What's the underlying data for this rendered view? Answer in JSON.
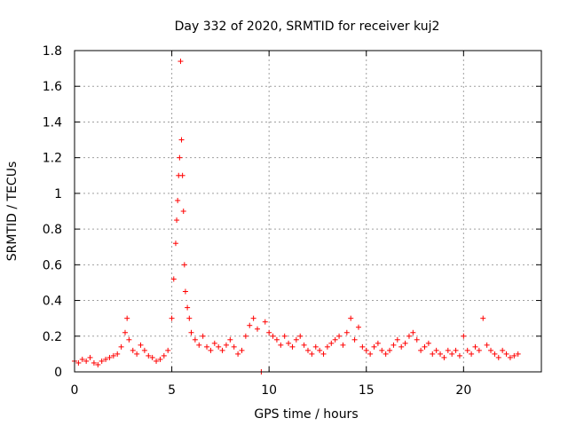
{
  "chart_data": {
    "type": "scatter",
    "title": "Day 332 of 2020, SRMTID for receiver kuj2",
    "xlabel": "GPS time / hours",
    "ylabel": "SRMTID / TECUs",
    "xlim": [
      0,
      24
    ],
    "ylim": [
      0,
      1.8
    ],
    "xticks": [
      0,
      5,
      10,
      15,
      20
    ],
    "xtick_labels": [
      "0",
      "5",
      "10",
      "15",
      "20"
    ],
    "yticks": [
      0,
      0.2,
      0.4,
      0.6,
      0.8,
      1.0,
      1.2,
      1.4,
      1.6,
      1.8
    ],
    "ytick_labels": [
      "0",
      "0.2",
      "0.4",
      "0.6",
      "0.8",
      "1",
      "1.2",
      "1.4",
      "1.6",
      "1.8"
    ],
    "grid": true,
    "marker": "+",
    "color": "#ff0000",
    "series": [
      {
        "name": "kuj2",
        "x": [
          0.0,
          0.2,
          0.4,
          0.6,
          0.8,
          1.0,
          1.2,
          1.4,
          1.6,
          1.8,
          2.0,
          2.2,
          2.4,
          2.6,
          2.7,
          2.8,
          3.0,
          3.2,
          3.4,
          3.6,
          3.8,
          4.0,
          4.2,
          4.4,
          4.6,
          4.8,
          5.0,
          5.1,
          5.2,
          5.25,
          5.3,
          5.35,
          5.4,
          5.45,
          5.5,
          5.55,
          5.6,
          5.65,
          5.7,
          5.8,
          5.9,
          6.0,
          6.2,
          6.4,
          6.6,
          6.8,
          7.0,
          7.2,
          7.4,
          7.6,
          7.8,
          8.0,
          8.2,
          8.4,
          8.6,
          8.8,
          9.0,
          9.2,
          9.4,
          9.6,
          9.8,
          10.0,
          10.2,
          10.4,
          10.6,
          10.8,
          11.0,
          11.2,
          11.4,
          11.6,
          11.8,
          12.0,
          12.2,
          12.4,
          12.6,
          12.8,
          13.0,
          13.2,
          13.4,
          13.6,
          13.8,
          14.0,
          14.2,
          14.4,
          14.6,
          14.8,
          15.0,
          15.2,
          15.4,
          15.6,
          15.8,
          16.0,
          16.2,
          16.4,
          16.6,
          16.8,
          17.0,
          17.2,
          17.4,
          17.6,
          17.8,
          18.0,
          18.2,
          18.4,
          18.6,
          18.8,
          19.0,
          19.2,
          19.4,
          19.6,
          19.8,
          20.0,
          20.2,
          20.4,
          20.6,
          20.8,
          21.0,
          21.2,
          21.4,
          21.6,
          21.8,
          22.0,
          22.2,
          22.4,
          22.6,
          22.8
        ],
        "y": [
          0.06,
          0.05,
          0.07,
          0.06,
          0.08,
          0.05,
          0.04,
          0.06,
          0.07,
          0.08,
          0.09,
          0.1,
          0.14,
          0.22,
          0.3,
          0.18,
          0.12,
          0.1,
          0.15,
          0.12,
          0.09,
          0.08,
          0.06,
          0.07,
          0.09,
          0.12,
          0.3,
          0.52,
          0.72,
          0.85,
          0.96,
          1.1,
          1.2,
          1.74,
          1.3,
          1.1,
          0.9,
          0.6,
          0.45,
          0.36,
          0.3,
          0.22,
          0.18,
          0.15,
          0.2,
          0.14,
          0.12,
          0.16,
          0.14,
          0.12,
          0.15,
          0.18,
          0.14,
          0.1,
          0.12,
          0.2,
          0.26,
          0.3,
          0.24,
          0.0,
          0.28,
          0.22,
          0.2,
          0.18,
          0.15,
          0.2,
          0.16,
          0.14,
          0.18,
          0.2,
          0.15,
          0.12,
          0.1,
          0.14,
          0.12,
          0.1,
          0.14,
          0.16,
          0.18,
          0.2,
          0.15,
          0.22,
          0.3,
          0.18,
          0.25,
          0.14,
          0.12,
          0.1,
          0.14,
          0.16,
          0.12,
          0.1,
          0.12,
          0.15,
          0.18,
          0.14,
          0.16,
          0.2,
          0.22,
          0.18,
          0.12,
          0.14,
          0.16,
          0.1,
          0.12,
          0.1,
          0.08,
          0.12,
          0.1,
          0.12,
          0.09,
          0.2,
          0.12,
          0.1,
          0.14,
          0.12,
          0.3,
          0.15,
          0.12,
          0.1,
          0.08,
          0.12,
          0.1,
          0.08,
          0.09,
          0.1
        ]
      }
    ]
  }
}
